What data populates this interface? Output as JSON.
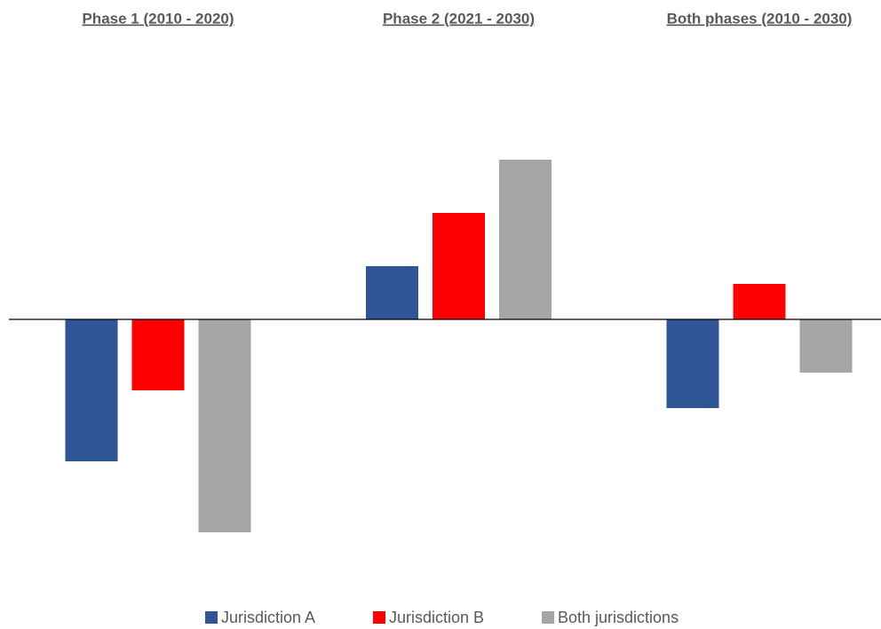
{
  "chart_data": {
    "type": "bar",
    "categories": [
      "Phase 1 (2010 - 2020)",
      "Phase 2 (2021 - 2030)",
      "Both phases (2010 - 2030)"
    ],
    "series": [
      {
        "name": "Jurisdiction A",
        "color": "#2f5597",
        "values": [
          -8,
          3,
          -5
        ]
      },
      {
        "name": "Jurisdiction B",
        "color": "#ff0000",
        "values": [
          -4,
          6,
          2
        ]
      },
      {
        "name": "Both jurisdictions",
        "color": "#a5a5a5",
        "values": [
          -12,
          9,
          -3
        ]
      }
    ],
    "ylim": [
      -15,
      15
    ],
    "legend": "bottom"
  }
}
